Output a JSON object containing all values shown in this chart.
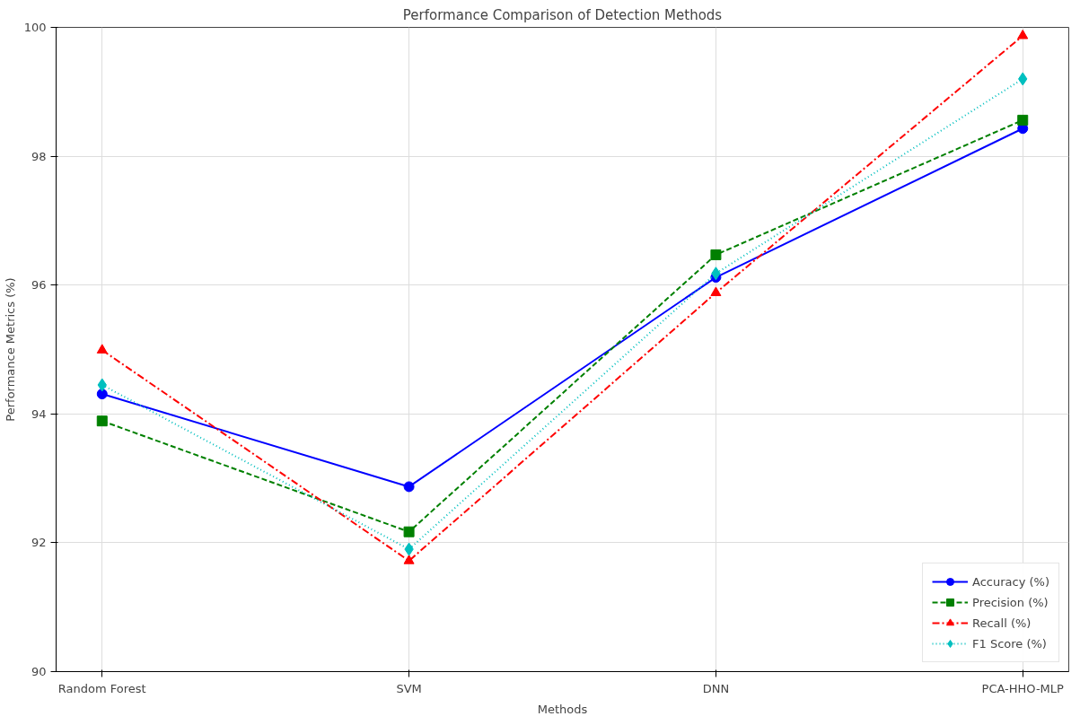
{
  "chart_data": {
    "type": "line",
    "title": "Performance Comparison of Detection Methods",
    "xlabel": "Methods",
    "ylabel": "Performance Metrics (%)",
    "categories": [
      "Random Forest",
      "SVM",
      "DNN",
      "PCA-HHO-MLP"
    ],
    "series": [
      {
        "name": "Accuracy (%)",
        "color": "#0000ff",
        "marker": "circle",
        "line_style": "solid",
        "values": [
          94.31,
          92.87,
          96.12,
          98.43
        ]
      },
      {
        "name": "Precision (%)",
        "color": "#008000",
        "marker": "square",
        "line_style": "dashed",
        "values": [
          93.89,
          92.17,
          96.47,
          98.56
        ]
      },
      {
        "name": "Recall (%)",
        "color": "#ff0000",
        "marker": "triangle",
        "line_style": "dashdot",
        "values": [
          94.99,
          91.72,
          95.88,
          99.87
        ]
      },
      {
        "name": "F1 Score (%)",
        "color": "#00bfbf",
        "marker": "diamond",
        "line_style": "dotted",
        "values": [
          94.45,
          91.9,
          96.18,
          99.2
        ]
      }
    ],
    "ylim": [
      90,
      100
    ],
    "yticks": [
      90,
      92,
      94,
      96,
      98,
      100
    ],
    "grid": true,
    "legend": "bottom right"
  }
}
